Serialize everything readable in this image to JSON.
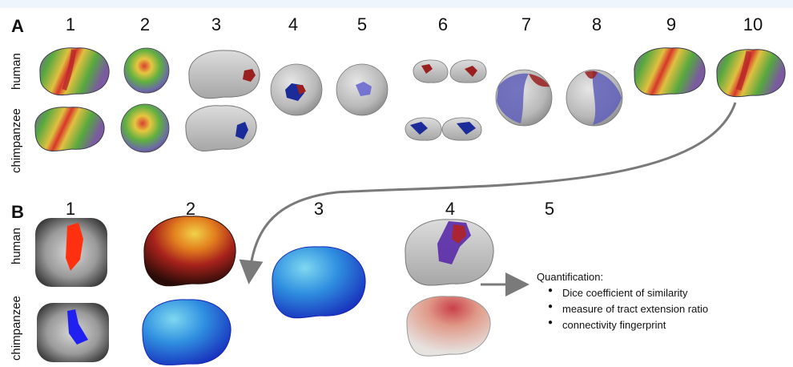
{
  "panel_a": {
    "letter": "A",
    "step_numbers": [
      "1",
      "2",
      "3",
      "4",
      "5",
      "6",
      "7",
      "8",
      "9",
      "10"
    ],
    "row_labels": [
      "human",
      "chimpanzee"
    ]
  },
  "panel_b": {
    "letter": "B",
    "step_numbers": [
      "1",
      "2",
      "3",
      "4",
      "5"
    ],
    "row_labels": [
      "human",
      "chimpanzee"
    ]
  },
  "quantification": {
    "title": "Quantification:",
    "items": [
      "Dice coefficient of similarity",
      "measure of tract extension ratio",
      "connectivity fingerprint"
    ]
  },
  "colors": {
    "human_roi": "#9a2020",
    "chimp_roi": "#1c2b9a",
    "arrow": "#7a7a7a",
    "background_strip": "#eef5fc"
  }
}
